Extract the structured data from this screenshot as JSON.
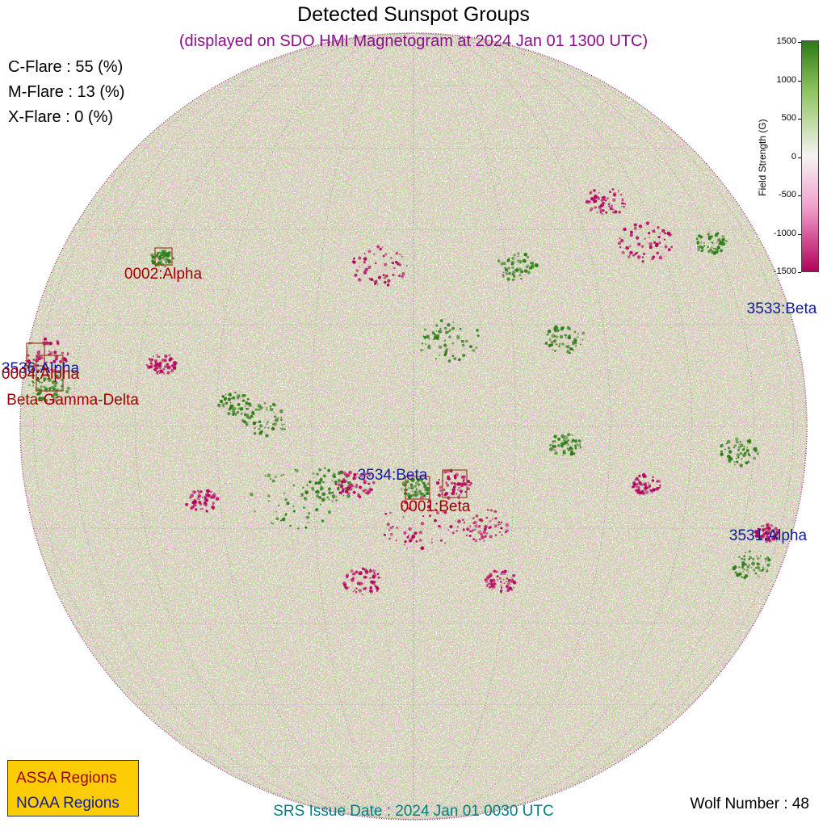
{
  "header": {
    "title": "Detected Sunspot Groups",
    "subtitle": "(displayed on SDO HMI Magnetogram at 2024 Jan 01 1300 UTC)"
  },
  "flare_probabilities": [
    {
      "label": "C-Flare : 55 (%)",
      "class": "C",
      "percent": 55
    },
    {
      "label": "M-Flare : 13 (%)",
      "class": "M",
      "percent": 13
    },
    {
      "label": "X-Flare :  0 (%)",
      "class": "X",
      "percent": 0
    }
  ],
  "regions": [
    {
      "id": "0001",
      "type": "Beta",
      "label": "0001:Beta",
      "source": "ASSA"
    },
    {
      "id": "0002",
      "type": "Alpha",
      "label": "0002:Alpha",
      "source": "ASSA"
    },
    {
      "id": "0004",
      "type": "Alpha",
      "label": "0004:Alpha",
      "source": "ASSA"
    },
    {
      "id": "",
      "type": "Beta-Gamma-Delta",
      "label": "Beta-Gamma-Delta",
      "source": "ASSA"
    },
    {
      "id": "3534",
      "type": "Beta",
      "label": "3534:Beta",
      "source": "NOAA"
    },
    {
      "id": "3533",
      "type": "Beta",
      "label": "3533:Beta",
      "source": "NOAA"
    },
    {
      "id": "3531",
      "type": "Alpha",
      "label": "3531:Alpha",
      "source": "NOAA"
    },
    {
      "id": "3536",
      "type": "Alpha",
      "label": "3536:Alpha",
      "source": "NOAA"
    }
  ],
  "legend": {
    "assa": "ASSA Regions",
    "noaa": "NOAA Regions"
  },
  "colorbar": {
    "label": "Field Strength (G)",
    "ticks": [
      "1500",
      "1000",
      "500",
      "0",
      "-500",
      "-1000",
      "-1500"
    ],
    "range": [
      -1500,
      1500
    ],
    "colors": {
      "positive": "#2d7a16",
      "negative": "#b3005a",
      "zero": "#f6f3f1"
    }
  },
  "footer": {
    "srs": "SRS Issue Date : 2024 Jan 01 0030 UTC",
    "wolf": "Wolf Number : 48"
  },
  "colors": {
    "assa_text": "#a10000",
    "noaa_text": "#101c9c",
    "subtitle": "#8b0d8b",
    "legend_bg": "#fccc05",
    "srs_text": "#008080"
  }
}
